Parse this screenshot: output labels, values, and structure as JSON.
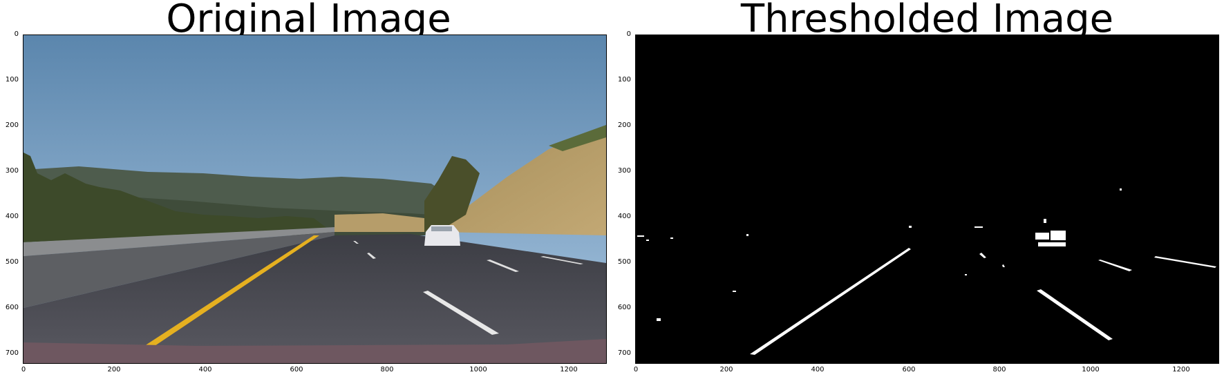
{
  "panels": [
    {
      "title": "Original Image"
    },
    {
      "title": "Thresholded Image"
    }
  ],
  "axes": {
    "y_ticks": [
      "0",
      "100",
      "200",
      "300",
      "400",
      "500",
      "600",
      "700"
    ],
    "x_ticks": [
      "0",
      "200",
      "400",
      "600",
      "800",
      "1000",
      "1200"
    ]
  }
}
